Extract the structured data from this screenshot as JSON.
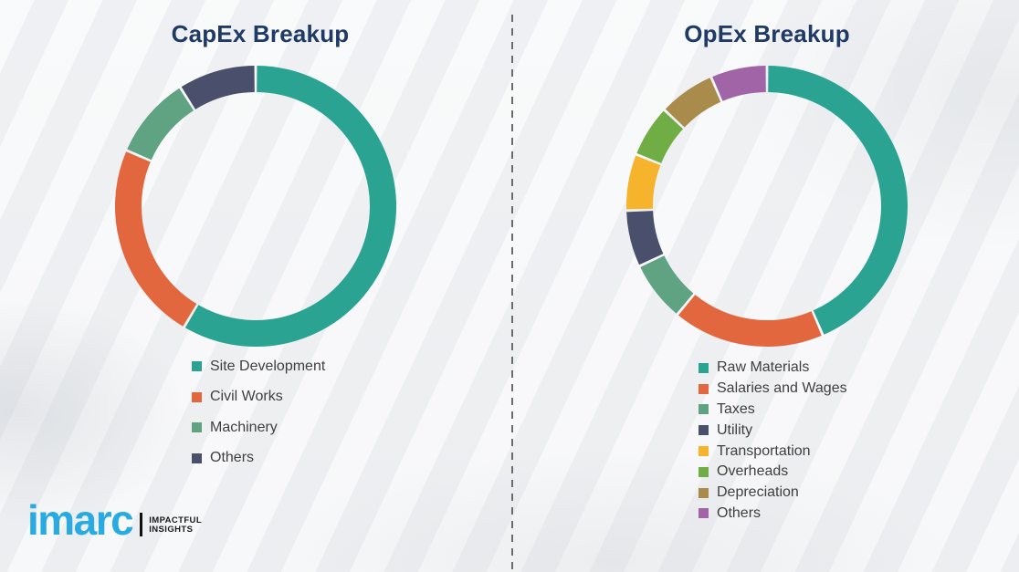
{
  "colors": {
    "title": "#1F3A64",
    "legend_text": "#3F3F3F",
    "background": "#f3f4f6",
    "divider": "#6a6d70"
  },
  "chart_data": [
    {
      "type": "pie",
      "subtype": "donut",
      "title": "CapEx Breakup",
      "legend_position": "bottom",
      "segments": [
        {
          "label": "Site Development",
          "value": 58.5,
          "color": "#2AA392"
        },
        {
          "label": "Civil Works",
          "value": 23.0,
          "color": "#E2673F"
        },
        {
          "label": "Machinery",
          "value": 9.5,
          "color": "#5FA383"
        },
        {
          "label": "Others",
          "value": 9.0,
          "color": "#4A506B"
        }
      ]
    },
    {
      "type": "pie",
      "subtype": "donut",
      "title": "OpEx Breakup",
      "legend_position": "bottom",
      "segments": [
        {
          "label": "Raw Materials",
          "value": 43.5,
          "color": "#2AA392"
        },
        {
          "label": "Salaries and Wages",
          "value": 17.5,
          "color": "#E2673F"
        },
        {
          "label": "Taxes",
          "value": 7.0,
          "color": "#5FA383"
        },
        {
          "label": "Utility",
          "value": 6.5,
          "color": "#4A506B"
        },
        {
          "label": "Transportation",
          "value": 6.5,
          "color": "#F6B42D"
        },
        {
          "label": "Overheads",
          "value": 6.0,
          "color": "#70AE45"
        },
        {
          "label": "Depreciation",
          "value": 6.5,
          "color": "#A98B4C"
        },
        {
          "label": "Others",
          "value": 6.5,
          "color": "#A164A6"
        }
      ]
    }
  ],
  "branding": {
    "logo_text": "imarc",
    "logo_color": "#29ABE2",
    "tagline_line1": "IMPACTFUL",
    "tagline_line2": "INSIGHTS"
  }
}
